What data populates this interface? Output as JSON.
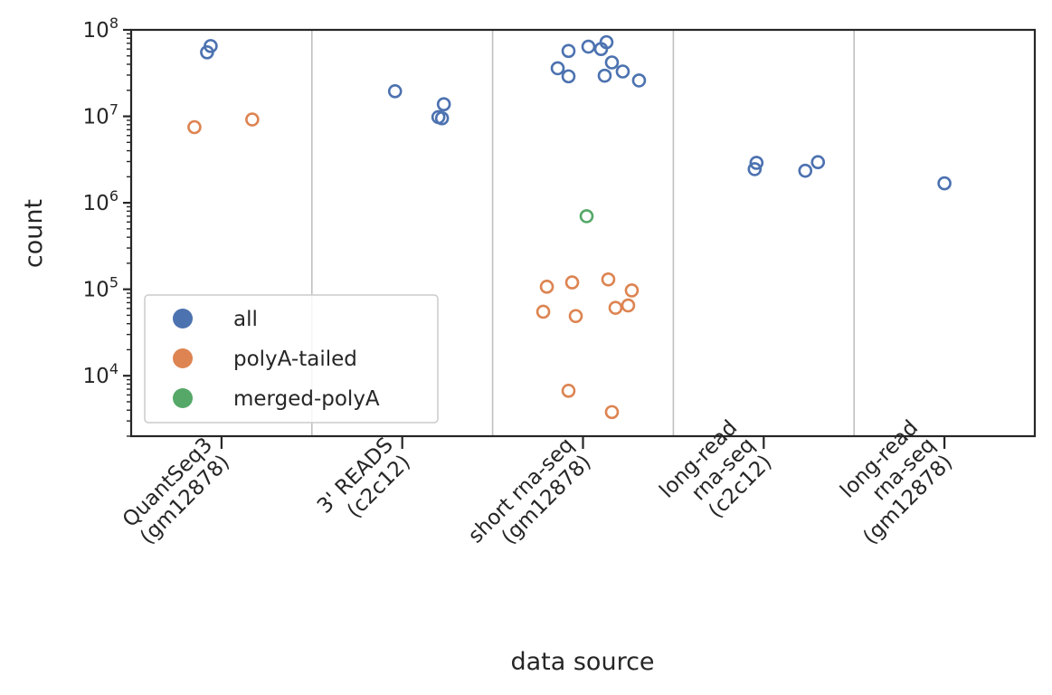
{
  "chart_data": {
    "type": "scatter",
    "xlabel": "data source",
    "ylabel": "count",
    "yscale": "log",
    "ylim": [
      2000,
      100000000
    ],
    "y_ticks": [
      {
        "value": 10000,
        "base": "10",
        "exp": "4"
      },
      {
        "value": 100000,
        "base": "10",
        "exp": "5"
      },
      {
        "value": 1000000,
        "base": "10",
        "exp": "6"
      },
      {
        "value": 10000000,
        "base": "10",
        "exp": "7"
      },
      {
        "value": 100000000,
        "base": "10",
        "exp": "8"
      }
    ],
    "categories": [
      [
        "QuantSeq3",
        "(gm12878)"
      ],
      [
        "3' READS",
        "(c2c12)"
      ],
      [
        "short rna-seq",
        "(gm12878)"
      ],
      [
        "long-read",
        "rna-seq",
        "(c2c12)"
      ],
      [
        "long-read",
        "rna-seq",
        "(gm12878)"
      ]
    ],
    "grid": "vertical separators between categories",
    "legend": {
      "placement": "lower-left",
      "entries": [
        {
          "name": "all",
          "color": "#4c72b0"
        },
        {
          "name": "polyA-tailed",
          "color": "#dd8452"
        },
        {
          "name": "merged-polyA",
          "color": "#55a868"
        }
      ]
    },
    "series": [
      {
        "name": "all",
        "color": "#4c72b0",
        "points": [
          {
            "cat": 0,
            "jitter": -0.08,
            "y": 55000000
          },
          {
            "cat": 0,
            "jitter": -0.06,
            "y": 65000000
          },
          {
            "cat": 1,
            "jitter": -0.04,
            "y": 19500000
          },
          {
            "cat": 1,
            "jitter": 0.2,
            "y": 9800000
          },
          {
            "cat": 1,
            "jitter": 0.22,
            "y": 9500000
          },
          {
            "cat": 1,
            "jitter": 0.23,
            "y": 13800000
          },
          {
            "cat": 2,
            "jitter": -0.14,
            "y": 36000000
          },
          {
            "cat": 2,
            "jitter": -0.08,
            "y": 57000000
          },
          {
            "cat": 2,
            "jitter": -0.08,
            "y": 29000000
          },
          {
            "cat": 2,
            "jitter": 0.03,
            "y": 64000000
          },
          {
            "cat": 2,
            "jitter": 0.1,
            "y": 60000000
          },
          {
            "cat": 2,
            "jitter": 0.13,
            "y": 72000000
          },
          {
            "cat": 2,
            "jitter": 0.12,
            "y": 29500000
          },
          {
            "cat": 2,
            "jitter": 0.16,
            "y": 42000000
          },
          {
            "cat": 2,
            "jitter": 0.22,
            "y": 33000000
          },
          {
            "cat": 2,
            "jitter": 0.31,
            "y": 26000000
          },
          {
            "cat": 3,
            "jitter": -0.05,
            "y": 2450000
          },
          {
            "cat": 3,
            "jitter": -0.04,
            "y": 2900000
          },
          {
            "cat": 3,
            "jitter": 0.23,
            "y": 2350000
          },
          {
            "cat": 3,
            "jitter": 0.3,
            "y": 2950000
          },
          {
            "cat": 4,
            "jitter": 0.0,
            "y": 1680000
          }
        ]
      },
      {
        "name": "polyA-tailed",
        "color": "#dd8452",
        "points": [
          {
            "cat": 0,
            "jitter": -0.15,
            "y": 7500000
          },
          {
            "cat": 0,
            "jitter": 0.17,
            "y": 9200000
          },
          {
            "cat": 2,
            "jitter": -0.22,
            "y": 55000
          },
          {
            "cat": 2,
            "jitter": -0.2,
            "y": 107000
          },
          {
            "cat": 2,
            "jitter": -0.06,
            "y": 120000
          },
          {
            "cat": 2,
            "jitter": -0.04,
            "y": 49000
          },
          {
            "cat": 2,
            "jitter": 0.14,
            "y": 130000
          },
          {
            "cat": 2,
            "jitter": 0.18,
            "y": 61000
          },
          {
            "cat": 2,
            "jitter": 0.25,
            "y": 65000
          },
          {
            "cat": 2,
            "jitter": 0.27,
            "y": 97000
          },
          {
            "cat": 2,
            "jitter": -0.08,
            "y": 6700
          },
          {
            "cat": 2,
            "jitter": 0.16,
            "y": 3800
          }
        ]
      },
      {
        "name": "merged-polyA",
        "color": "#55a868",
        "points": [
          {
            "cat": 2,
            "jitter": 0.02,
            "y": 700000
          }
        ]
      }
    ]
  }
}
